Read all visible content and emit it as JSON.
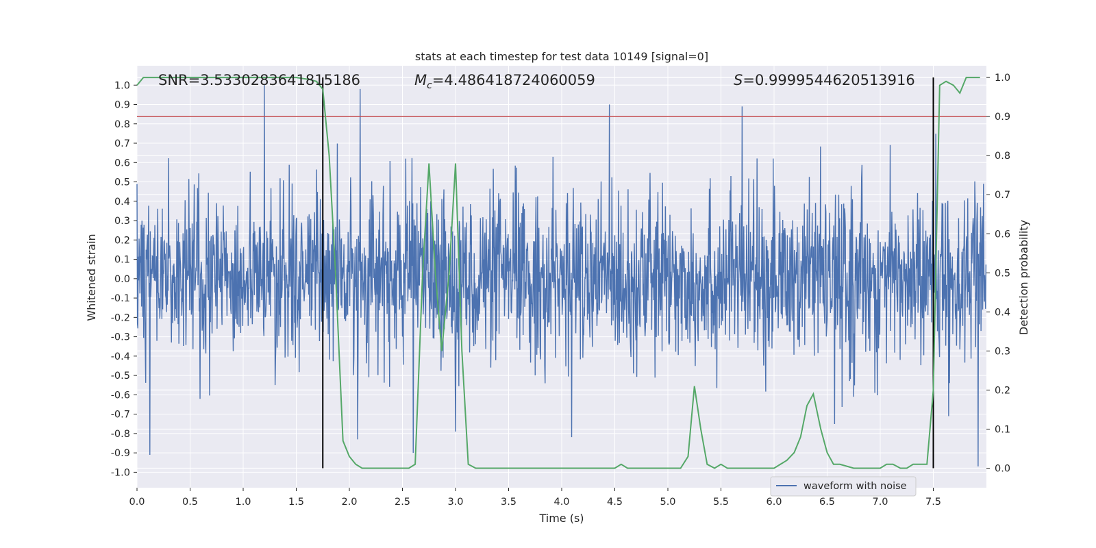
{
  "chart_data": {
    "type": "line",
    "title": "stats at each timestep for test data 10149 [signal=0]",
    "xlabel": "Time (s)",
    "ylabel_left": "Whitened strain",
    "ylabel_right": "Detection probability",
    "xlim": [
      0,
      8.0
    ],
    "ylim_left": [
      -1.08,
      1.1
    ],
    "ylim_right": [
      -0.05,
      1.03
    ],
    "x_ticks": [
      "0.0",
      "0.5",
      "1.0",
      "1.5",
      "2.0",
      "2.5",
      "3.0",
      "3.5",
      "4.0",
      "4.5",
      "5.0",
      "5.5",
      "6.0",
      "6.5",
      "7.0",
      "7.5"
    ],
    "x_tick_values": [
      0,
      0.5,
      1,
      1.5,
      2,
      2.5,
      3,
      3.5,
      4,
      4.5,
      5,
      5.5,
      6,
      6.5,
      7,
      7.5
    ],
    "y_left_ticks": [
      "1.0",
      "0.9",
      "0.8",
      "0.7",
      "0.6",
      "0.5",
      "0.4",
      "0.3",
      "0.2",
      "0.1",
      "0.0",
      "-0.1",
      "-0.2",
      "-0.3",
      "-0.4",
      "-0.5",
      "-0.6",
      "-0.7",
      "-0.8",
      "-0.9",
      "-1.0"
    ],
    "y_left_tick_values": [
      1.0,
      0.9,
      0.8,
      0.7,
      0.6,
      0.5,
      0.4,
      0.3,
      0.2,
      0.1,
      0.0,
      -0.1,
      -0.2,
      -0.3,
      -0.4,
      -0.5,
      -0.6,
      -0.7,
      -0.8,
      -0.9,
      -1.0
    ],
    "y_right_ticks": [
      "1.0",
      "0.9",
      "0.8",
      "0.7",
      "0.6",
      "0.5",
      "0.4",
      "0.3",
      "0.2",
      "0.1",
      "0.0"
    ],
    "y_right_tick_values": [
      1.0,
      0.9,
      0.8,
      0.7,
      0.6,
      0.5,
      0.4,
      0.3,
      0.2,
      0.1,
      0.0
    ],
    "annotations": {
      "snr": "SNR=3.5330283641815186",
      "mc_symbol": "M",
      "mc_sub": "c",
      "mc_value": "=4.486418724060059",
      "s_symbol": "S",
      "s_value": "=0.9999544620513916"
    },
    "threshold_line": {
      "y_right": 0.9,
      "color": "#c44e52"
    },
    "vertical_markers": [
      1.75,
      7.5
    ],
    "legend": {
      "entries": [
        "waveform with noise"
      ],
      "position": "lower-right"
    },
    "grid": true,
    "background": "#eaeaf2",
    "series": [
      {
        "name": "waveform with noise",
        "axis": "left",
        "color": "#4c72b0",
        "sample_rate_hz": 256,
        "envelope_typical_amplitude": 0.38,
        "notable_peaks": [
          {
            "t": 1.2,
            "y": 1.0
          },
          {
            "t": 2.1,
            "y": 0.98
          },
          {
            "t": 4.45,
            "y": 0.9
          },
          {
            "t": 5.7,
            "y": 0.89
          },
          {
            "t": 7.92,
            "y": 0.89
          },
          {
            "t": 0.12,
            "y": -0.91
          },
          {
            "t": 2.6,
            "y": -0.9
          },
          {
            "t": 7.92,
            "y": -0.97
          },
          {
            "t": 2.08,
            "y": -0.83
          },
          {
            "t": 3.0,
            "y": -0.79
          }
        ]
      },
      {
        "name": "detection probability",
        "axis": "right",
        "color": "#55a868",
        "x": [
          0.0,
          0.06,
          0.25,
          0.5,
          0.75,
          1.0,
          1.25,
          1.5,
          1.62,
          1.69,
          1.75,
          1.81,
          1.87,
          1.94,
          2.0,
          2.06,
          2.12,
          2.25,
          2.5,
          2.56,
          2.62,
          2.69,
          2.75,
          2.81,
          2.87,
          2.94,
          3.0,
          3.06,
          3.12,
          3.19,
          3.25,
          3.5,
          3.75,
          4.0,
          4.12,
          4.25,
          4.5,
          4.56,
          4.62,
          4.75,
          5.0,
          5.06,
          5.12,
          5.19,
          5.25,
          5.31,
          5.37,
          5.44,
          5.5,
          5.56,
          5.62,
          5.75,
          6.0,
          6.06,
          6.12,
          6.19,
          6.25,
          6.31,
          6.37,
          6.44,
          6.5,
          6.56,
          6.62,
          6.75,
          7.0,
          7.06,
          7.12,
          7.19,
          7.25,
          7.31,
          7.37,
          7.44,
          7.5,
          7.56,
          7.62,
          7.69,
          7.75,
          7.81,
          7.87,
          7.94
        ],
        "y": [
          0.98,
          1.0,
          1.0,
          1.0,
          1.0,
          1.0,
          1.0,
          1.0,
          0.995,
          0.99,
          0.97,
          0.8,
          0.5,
          0.07,
          0.03,
          0.01,
          0.0,
          0.0,
          0.0,
          0.0,
          0.01,
          0.5,
          0.78,
          0.5,
          0.3,
          0.5,
          0.78,
          0.3,
          0.01,
          0.0,
          0.0,
          0.0,
          0.0,
          0.0,
          0.0,
          0.0,
          0.0,
          0.01,
          0.0,
          0.0,
          0.0,
          0.0,
          0.0,
          0.03,
          0.21,
          0.1,
          0.01,
          0.0,
          0.01,
          0.0,
          0.0,
          0.0,
          0.0,
          0.01,
          0.02,
          0.04,
          0.08,
          0.16,
          0.19,
          0.1,
          0.04,
          0.01,
          0.01,
          0.0,
          0.0,
          0.01,
          0.01,
          0.0,
          0.0,
          0.01,
          0.01,
          0.01,
          0.2,
          0.98,
          0.99,
          0.98,
          0.96,
          1.0,
          1.0,
          1.0
        ]
      }
    ]
  }
}
